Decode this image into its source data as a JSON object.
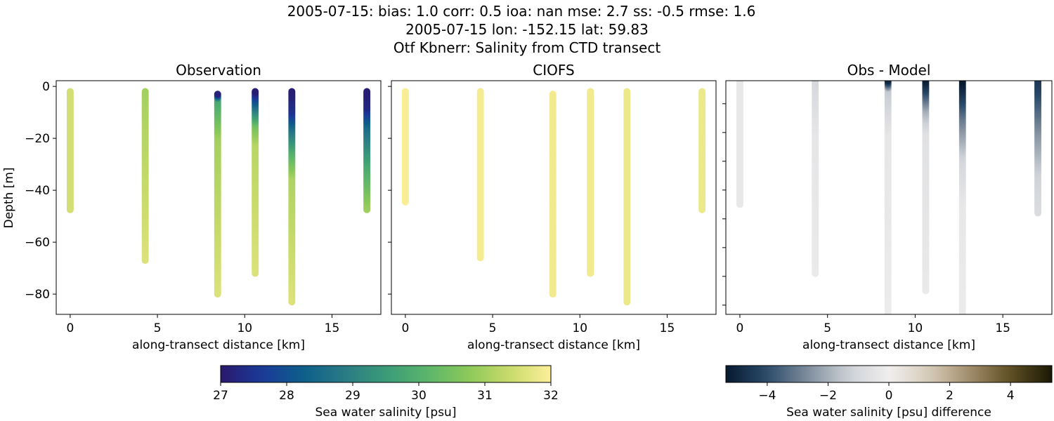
{
  "chart_data": {
    "type": "scatter",
    "title_lines": [
      "2005-07-15: bias: 1.0  corr: 0.5  ioa: nan  mse: 2.7  ss: -0.5  rmse: 1.6",
      "2005-07-15 lon: -152.15 lat: 59.83",
      "Otf Kbnerr: Salinity from CTD transect"
    ],
    "xlim": [
      -0.8,
      17.8
    ],
    "xticks": [
      0,
      5,
      10,
      15
    ],
    "xlabel": "along-transect distance [km]",
    "ylabel": "Depth [m]",
    "panels": [
      {
        "title": "Observation",
        "ylim": [
          -87.8,
          2.2
        ],
        "yticks": [
          0,
          -20,
          -40,
          -60,
          -80
        ],
        "ytick_labels": true,
        "colormap": "haline",
        "profiles": [
          {
            "x": 0,
            "knots": [
              [
                -2,
                31.5
              ],
              [
                -47.5,
                31.5
              ]
            ]
          },
          {
            "x": 4.3,
            "knots": [
              [
                -2,
                31.0
              ],
              [
                -10,
                31.1
              ],
              [
                -67,
                31.6
              ]
            ]
          },
          {
            "x": 8.45,
            "knots": [
              [
                -3,
                27.2
              ],
              [
                -5,
                29.8
              ],
              [
                -20,
                31.0
              ],
              [
                -80,
                31.6
              ]
            ]
          },
          {
            "x": 10.6,
            "knots": [
              [
                -2,
                27.1
              ],
              [
                -7,
                28.5
              ],
              [
                -15,
                30.5
              ],
              [
                -22,
                31.2
              ],
              [
                -72,
                31.6
              ]
            ]
          },
          {
            "x": 12.7,
            "knots": [
              [
                -2,
                27.1
              ],
              [
                -10,
                27.5
              ],
              [
                -15,
                28.5
              ],
              [
                -25,
                30.0
              ],
              [
                -35,
                31.1
              ],
              [
                -83,
                31.6
              ]
            ]
          },
          {
            "x": 17.0,
            "knots": [
              [
                -2,
                27.1
              ],
              [
                -8,
                27.3
              ],
              [
                -15,
                28.5
              ],
              [
                -30,
                29.8
              ],
              [
                -47.5,
                31.0
              ]
            ]
          }
        ]
      },
      {
        "title": "CIOFS",
        "ylim": [
          -87.8,
          2.2
        ],
        "yticks": [
          0,
          -20,
          -40,
          -60,
          -80
        ],
        "ytick_labels": false,
        "colormap": "haline",
        "profiles": [
          {
            "x": 0,
            "knots": [
              [
                -2,
                31.95
              ],
              [
                -44.5,
                31.95
              ]
            ]
          },
          {
            "x": 4.3,
            "knots": [
              [
                -2,
                31.9
              ],
              [
                -66,
                31.9
              ]
            ]
          },
          {
            "x": 8.45,
            "knots": [
              [
                -3,
                31.85
              ],
              [
                -80,
                31.85
              ]
            ]
          },
          {
            "x": 10.6,
            "knots": [
              [
                -2,
                31.85
              ],
              [
                -72,
                31.85
              ]
            ]
          },
          {
            "x": 12.7,
            "knots": [
              [
                -2,
                31.8
              ],
              [
                -83,
                31.8
              ]
            ]
          },
          {
            "x": 17.0,
            "knots": [
              [
                -2,
                31.8
              ],
              [
                -47.5,
                31.8
              ]
            ]
          }
        ]
      },
      {
        "title": "Obs - Model",
        "ylim": [
          -83.2,
          -2
        ],
        "yticks": [
          -10,
          -20,
          -30,
          -40,
          -50,
          -60,
          -70,
          -80
        ],
        "ytick_labels": false,
        "colormap": "diff",
        "profiles": [
          {
            "x": 0,
            "knots": [
              [
                -2,
                -0.3
              ],
              [
                -45,
                -0.3
              ]
            ]
          },
          {
            "x": 4.3,
            "knots": [
              [
                -2,
                -1.0
              ],
              [
                -20,
                -0.4
              ],
              [
                -69,
                -0.2
              ]
            ]
          },
          {
            "x": 8.45,
            "knots": [
              [
                -2,
                -5.0
              ],
              [
                -5,
                -1.5
              ],
              [
                -20,
                -0.4
              ],
              [
                -84,
                -0.1
              ]
            ]
          },
          {
            "x": 10.6,
            "knots": [
              [
                -2,
                -5.2
              ],
              [
                -12,
                -2.0
              ],
              [
                -20,
                -0.6
              ],
              [
                -75,
                -0.2
              ]
            ]
          },
          {
            "x": 12.7,
            "knots": [
              [
                -2,
                -5.4
              ],
              [
                -15,
                -3.0
              ],
              [
                -30,
                -1.0
              ],
              [
                -45,
                -0.3
              ],
              [
                -90,
                -0.1
              ]
            ]
          },
          {
            "x": 17.0,
            "knots": [
              [
                -2,
                -4.5
              ],
              [
                -20,
                -2.5
              ],
              [
                -35,
                -1.2
              ],
              [
                -48,
                -0.8
              ]
            ]
          }
        ]
      }
    ],
    "colorbars": [
      {
        "label": "Sea water salinity [psu]",
        "range": [
          27,
          32
        ],
        "ticks": [
          27,
          28,
          29,
          30,
          31,
          32
        ],
        "colormap": "haline"
      },
      {
        "label": "Sea water salinity [psu] difference",
        "range": [
          -5.36,
          5.36
        ],
        "ticks": [
          -4,
          -2,
          0,
          2,
          4
        ],
        "colormap": "diff"
      }
    ],
    "colormaps": {
      "haline": [
        "#2a186c",
        "#1a3a9a",
        "#0e5e8a",
        "#2a7b85",
        "#3a9b78",
        "#5bb56b",
        "#8cc95a",
        "#c9db6a",
        "#fdef9a"
      ],
      "diff": [
        "#071a30",
        "#2a4a6a",
        "#7d8c9c",
        "#cdd1d6",
        "#f0eeee",
        "#d6cbb8",
        "#a08c6a",
        "#5e4e22",
        "#1a1805"
      ]
    }
  }
}
